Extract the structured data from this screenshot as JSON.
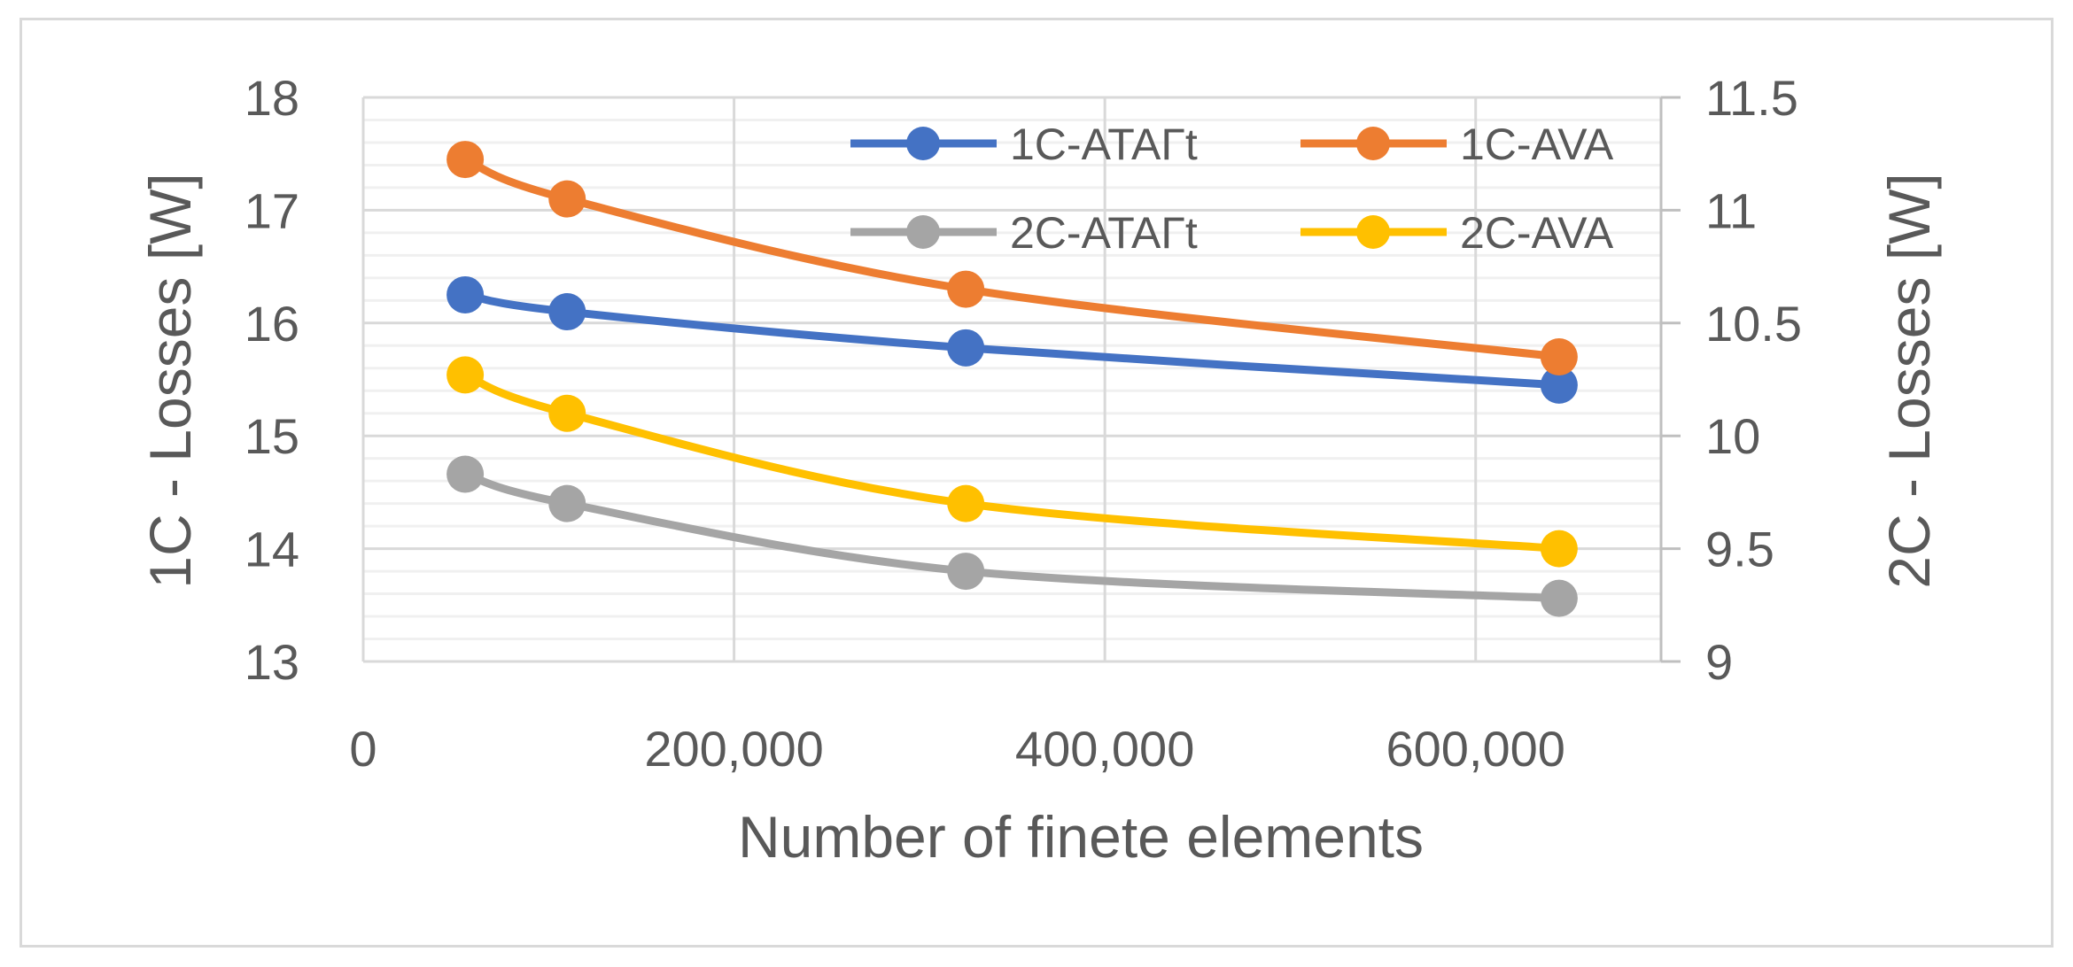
{
  "chart_data": {
    "type": "line",
    "title": "",
    "xlabel": "Number of finete elements",
    "ylabel_left": "1C - Losses [W]",
    "ylabel_right": "2C - Losses [W]",
    "xlim": [
      0,
      700000
    ],
    "x_ticks": [
      0,
      200000,
      400000,
      600000
    ],
    "x_tick_labels": [
      "0",
      "200,000",
      "400,000",
      "600,000"
    ],
    "ylim_left": [
      13,
      18
    ],
    "y_ticks_left": [
      13,
      14,
      15,
      16,
      17,
      18
    ],
    "y_tick_labels_left": [
      "13",
      "14",
      "15",
      "16",
      "17",
      "18"
    ],
    "ylim_right": [
      9,
      11.5
    ],
    "y_ticks_right": [
      9,
      9.5,
      10,
      10.5,
      11,
      11.5
    ],
    "y_tick_labels_right": [
      "9",
      "9.5",
      "10",
      "10.5",
      "11",
      "11.5"
    ],
    "grid": true,
    "legend_position": "top-right",
    "series": [
      {
        "name": "1C-ATAΓt",
        "axis": "left",
        "color": "#4472C4",
        "x": [
          55000,
          110000,
          325000,
          645000
        ],
        "y": [
          16.25,
          16.1,
          15.78,
          15.45
        ]
      },
      {
        "name": "1C-AVA",
        "axis": "left",
        "color": "#ED7D31",
        "x": [
          55000,
          110000,
          325000,
          645000
        ],
        "y": [
          17.45,
          17.1,
          16.3,
          15.7
        ]
      },
      {
        "name": "2C-ATAΓt",
        "axis": "right",
        "color": "#A5A5A5",
        "x": [
          55000,
          110000,
          325000,
          645000
        ],
        "y": [
          9.83,
          9.7,
          9.4,
          9.28
        ]
      },
      {
        "name": "2C-AVA",
        "axis": "right",
        "color": "#FFC000",
        "x": [
          55000,
          110000,
          325000,
          645000
        ],
        "y": [
          10.27,
          10.1,
          9.7,
          9.5
        ]
      }
    ]
  }
}
